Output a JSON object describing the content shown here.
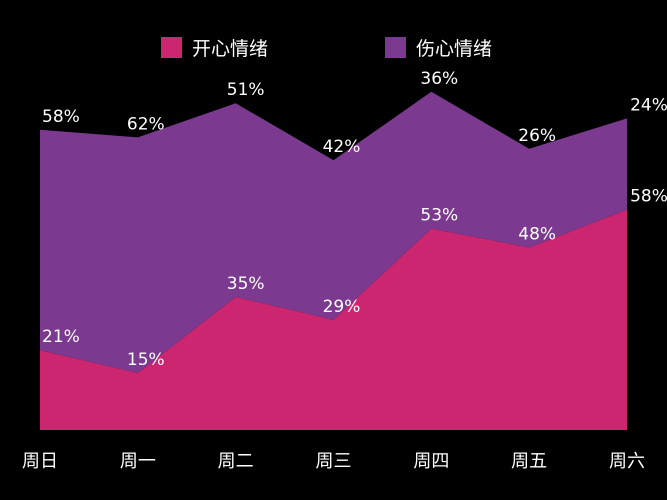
{
  "chart_data": {
    "type": "area",
    "stacked": true,
    "categories": [
      "周日",
      "周一",
      "周二",
      "周三",
      "周四",
      "周五",
      "周六"
    ],
    "series": [
      {
        "name": "开心情绪",
        "color": "#cc2670",
        "values": [
          21,
          15,
          35,
          29,
          53,
          48,
          58
        ],
        "labels": [
          "21%",
          "15%",
          "35%",
          "29%",
          "53%",
          "48%",
          "58%"
        ]
      },
      {
        "name": "伤心情绪",
        "color": "#7b3a8f",
        "values": [
          58,
          62,
          51,
          42,
          36,
          26,
          24
        ],
        "labels": [
          "58%",
          "62%",
          "51%",
          "42%",
          "36%",
          "26%",
          "24%"
        ]
      }
    ],
    "legend": "top",
    "grid": false,
    "ylim": [
      0,
      100
    ]
  }
}
